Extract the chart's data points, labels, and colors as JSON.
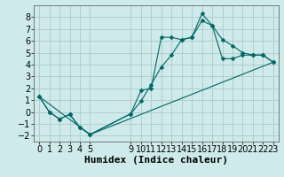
{
  "background_color": "#ceeaea",
  "grid_color": "#b0c8c8",
  "line_color": "#006666",
  "xlabel": "Humidex (Indice chaleur)",
  "ylim": [
    -2.5,
    9.0
  ],
  "xlim": [
    -0.5,
    23.5
  ],
  "yticks": [
    -2,
    -1,
    0,
    1,
    2,
    3,
    4,
    5,
    6,
    7,
    8
  ],
  "xticks": [
    0,
    1,
    2,
    3,
    4,
    5,
    9,
    10,
    11,
    12,
    13,
    14,
    15,
    16,
    17,
    18,
    19,
    20,
    21,
    22,
    23
  ],
  "line1_x": [
    0,
    1,
    2,
    3,
    4,
    5,
    9,
    10,
    11,
    12,
    13,
    14,
    15,
    16,
    17,
    18,
    19,
    20,
    21,
    22,
    23
  ],
  "line1_y": [
    1.3,
    0.0,
    -0.6,
    -0.2,
    -1.3,
    -1.9,
    -0.15,
    1.8,
    2.0,
    6.3,
    6.3,
    6.1,
    6.3,
    8.3,
    7.3,
    6.1,
    5.6,
    5.0,
    4.8,
    4.8,
    4.2
  ],
  "line2_x": [
    0,
    1,
    2,
    3,
    4,
    5,
    9,
    10,
    11,
    12,
    13,
    14,
    15,
    16,
    17,
    18,
    19,
    20,
    21,
    22,
    23
  ],
  "line2_y": [
    1.3,
    0.0,
    -0.6,
    -0.2,
    -1.3,
    -1.9,
    -0.15,
    0.9,
    2.3,
    3.8,
    4.8,
    6.1,
    6.3,
    7.7,
    7.3,
    4.5,
    4.5,
    4.8,
    4.8,
    4.8,
    4.2
  ],
  "line3_x": [
    0,
    5,
    23
  ],
  "line3_y": [
    1.3,
    -1.9,
    4.2
  ],
  "marker_size": 2.5,
  "xlabel_fontsize": 8,
  "tick_fontsize": 7
}
